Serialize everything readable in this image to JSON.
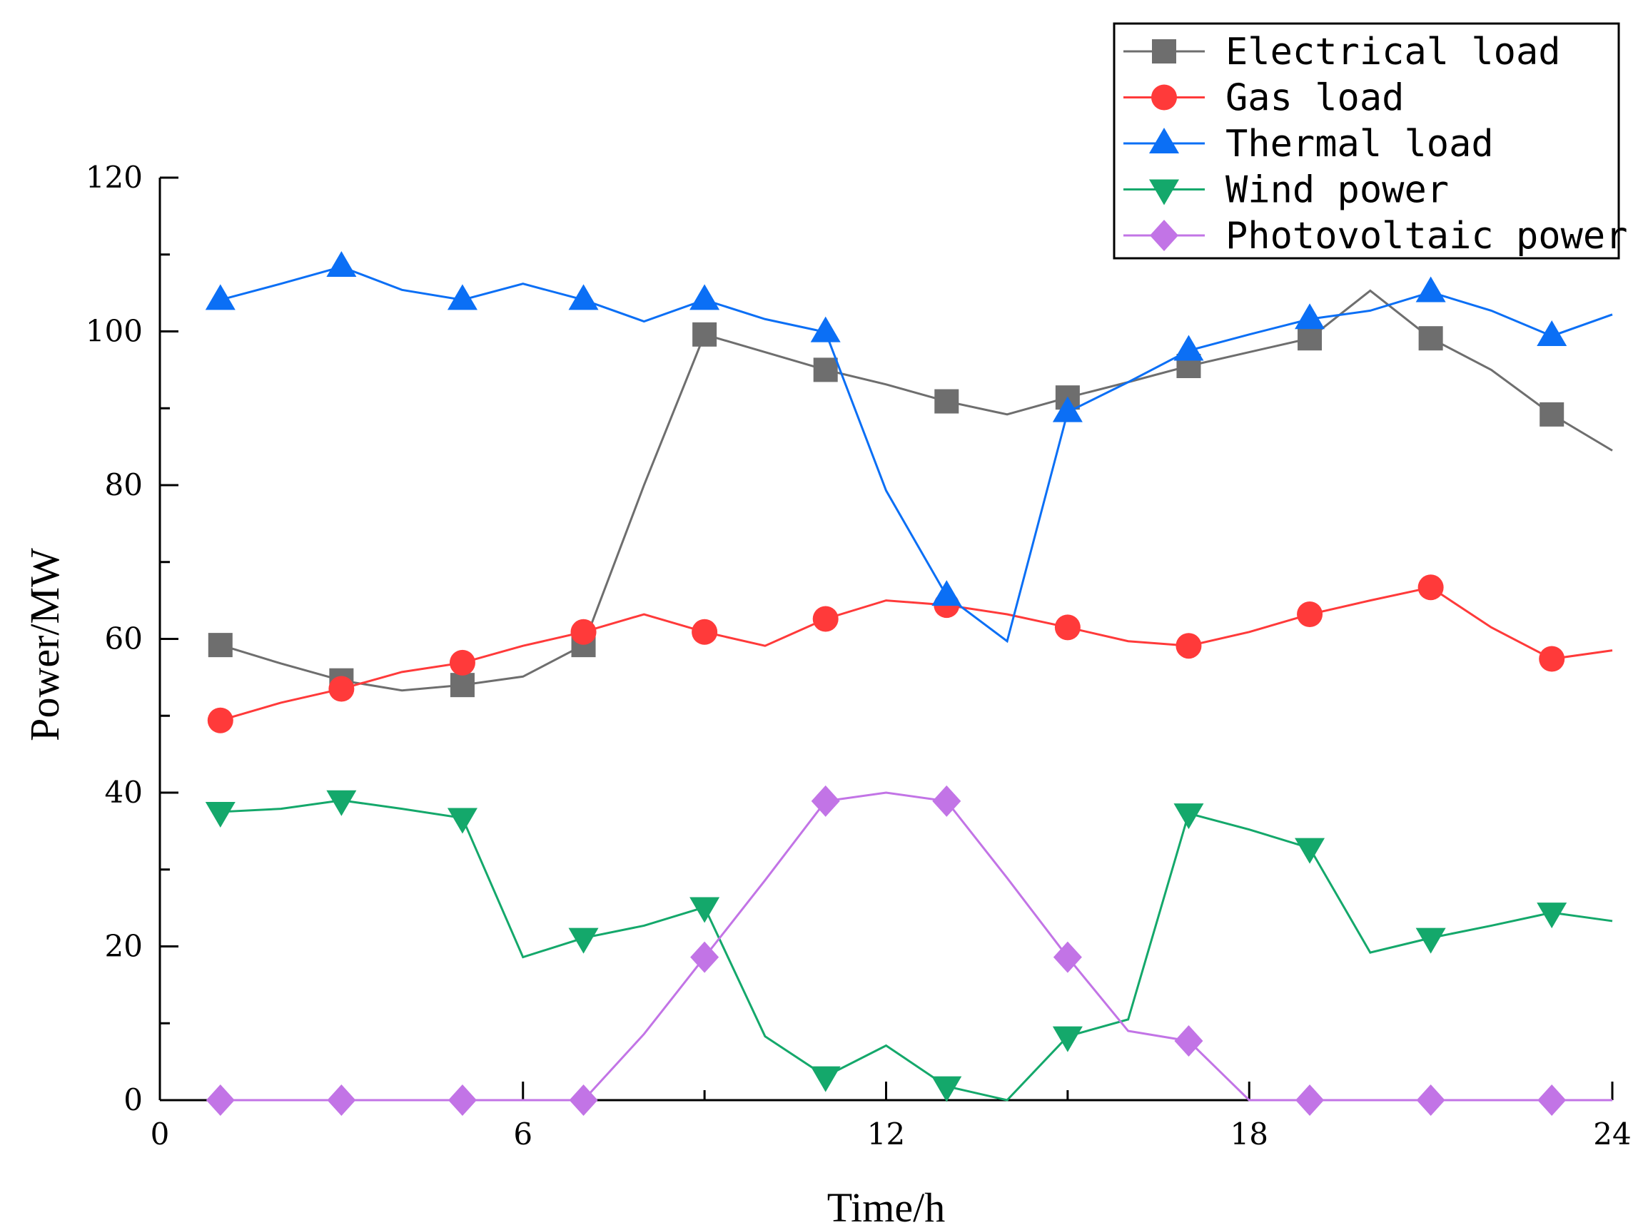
{
  "chart_data": {
    "type": "line",
    "title": "",
    "xlabel": "Time/h",
    "ylabel": "Power/MW",
    "xlim": [
      0,
      24
    ],
    "ylim": [
      0,
      120
    ],
    "xticks": [
      0,
      6,
      12,
      18,
      24
    ],
    "yticks": [
      0,
      20,
      40,
      60,
      80,
      100,
      120
    ],
    "xtick_labels": [
      "0",
      "6",
      "12",
      "18",
      "24"
    ],
    "ytick_labels": [
      "0",
      "20",
      "40",
      "60",
      "80",
      "100",
      "120"
    ],
    "grid": false,
    "legend_position": "top-right",
    "x": [
      1,
      2,
      3,
      4,
      5,
      6,
      7,
      8,
      9,
      10,
      11,
      12,
      13,
      14,
      15,
      16,
      17,
      18,
      19,
      20,
      21,
      22,
      23,
      24
    ],
    "series": [
      {
        "name": "Electrical load",
        "color": "#6e6e6e",
        "marker": "square",
        "values": [
          59.2,
          56.8,
          54.6,
          53.3,
          54.0,
          55.1,
          59.2,
          80.0,
          99.6,
          97.3,
          95.0,
          93.1,
          90.9,
          89.2,
          91.4,
          93.4,
          95.5,
          97.3,
          99.1,
          105.3,
          99.1,
          95.0,
          89.2,
          84.5
        ]
      },
      {
        "name": "Gas load",
        "color": "#ff3a3a",
        "marker": "circle",
        "values": [
          49.4,
          51.7,
          53.5,
          55.7,
          56.9,
          59.1,
          60.9,
          63.2,
          60.9,
          59.1,
          62.6,
          65.0,
          64.4,
          63.2,
          61.5,
          59.7,
          59.1,
          60.9,
          63.2,
          65.0,
          66.7,
          61.5,
          57.4,
          58.5
        ]
      },
      {
        "name": "Thermal load",
        "color": "#0b6ff5",
        "marker": "triangle-up",
        "values": [
          104.1,
          106.2,
          108.4,
          105.4,
          104.1,
          106.2,
          104.1,
          101.3,
          104.1,
          101.6,
          99.9,
          79.3,
          65.6,
          59.7,
          89.5,
          93.4,
          97.5,
          99.6,
          101.6,
          102.7,
          105.1,
          102.7,
          99.4,
          102.2
        ]
      },
      {
        "name": "Wind power",
        "color": "#14a86b",
        "marker": "triangle-down",
        "values": [
          37.5,
          37.9,
          39.0,
          37.9,
          36.7,
          18.6,
          21.1,
          22.7,
          25.1,
          8.3,
          3.1,
          7.1,
          1.8,
          0.0,
          8.3,
          10.5,
          37.3,
          35.2,
          32.8,
          19.2,
          21.1,
          22.7,
          24.4,
          23.3
        ]
      },
      {
        "name": "Photovoltaic power",
        "color": "#c274e6",
        "marker": "diamond",
        "values": [
          0,
          0,
          0,
          0,
          0,
          0,
          0,
          8.6,
          18.6,
          28.6,
          38.9,
          40.0,
          38.9,
          28.9,
          18.6,
          9.0,
          7.7,
          0,
          0,
          0,
          0,
          0,
          0,
          0
        ]
      }
    ]
  }
}
